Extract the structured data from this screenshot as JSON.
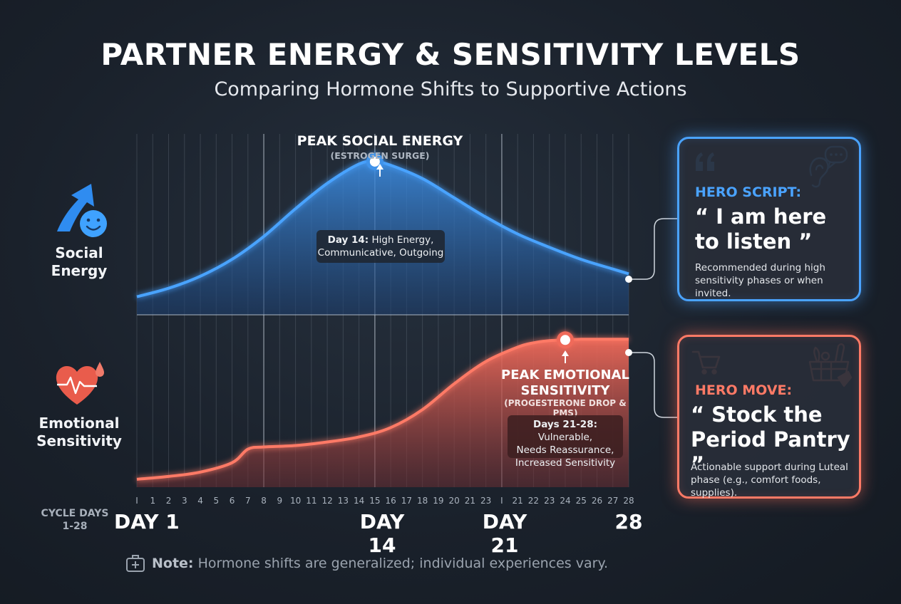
{
  "title": "PARTNER ENERGY & SENSITIVITY LEVELS",
  "subtitle": "Comparing Hormone Shifts to Supportive Actions",
  "colors": {
    "blue": "#3f93ea",
    "red": "#f06a5a"
  },
  "social": {
    "label_line1": "Social",
    "label_line2": "Energy",
    "peak_title": "PEAK SOCIAL ENERGY",
    "peak_sub": "(ESTROGEN SURGE)",
    "callout_bold": "Day 14:",
    "callout_rest": " High Energy,",
    "callout_line2": "Communicative, Outgoing"
  },
  "emotional": {
    "label_line1": "Emotional",
    "label_line2": "Sensitivity",
    "peak_title_line1": "PEAK EMOTIONAL",
    "peak_title_line2": "SENSITIVITY",
    "peak_sub": "(PROGESTERONE DROP & PMS)",
    "callout_bold": "Days 21-28:",
    "callout_rest": " Vulnerable,",
    "callout_line2": "Needs Reassurance,",
    "callout_line3": "Increased Sensitivity"
  },
  "axis": {
    "caption_line1": "CYCLE DAYS",
    "caption_line2": "1-28",
    "day1": "DAY 1",
    "day14": "DAY 14",
    "day21": "DAY 21",
    "day28": "28"
  },
  "cards": {
    "script": {
      "kicker": "HERO SCRIPT:",
      "headline_line1": "“ I am here",
      "headline_line2": "to listen ”",
      "desc_line1": "Recommended during high",
      "desc_line2": "sensitivity phases or when invited."
    },
    "move": {
      "kicker": "HERO MOVE:",
      "headline_line1": "“ Stock the",
      "headline_line2": "Period Pantry ”",
      "desc_line1": "Actionable support during Luteal",
      "desc_line2": "phase (e.g., comfort foods, supplies)."
    }
  },
  "note": {
    "bold": "Note:",
    "text": " Hormone shifts are generalized; individual experiences vary."
  },
  "chart_data": {
    "type": "area",
    "ticks": [
      "I",
      "1",
      "2",
      "3",
      "4",
      "5",
      "6",
      "7",
      "8",
      "9",
      "10",
      "11",
      "12",
      "13",
      "14",
      "15",
      "16",
      "17",
      "18",
      "19",
      "20",
      "21",
      "23",
      "I",
      "21",
      "22",
      "23",
      "24",
      "25",
      "26",
      "27",
      "28"
    ],
    "series": [
      {
        "name": "Social Energy",
        "x": [
          0,
          2,
          4,
          6,
          8,
          10,
          12,
          14,
          15,
          16,
          18,
          20,
          22,
          24,
          26,
          28,
          30,
          31
        ],
        "values": [
          1.5,
          2.2,
          3.2,
          4.6,
          6.5,
          8.8,
          10.9,
          12.5,
          12.7,
          12.4,
          11.3,
          9.7,
          8.1,
          6.7,
          5.6,
          4.6,
          3.8,
          3.4
        ]
      },
      {
        "name": "Emotional Sensitivity",
        "x": [
          0,
          2,
          4,
          6,
          7,
          8,
          10,
          12,
          14,
          16,
          18,
          20,
          22,
          24,
          25,
          26,
          27,
          28,
          29,
          30,
          31
        ],
        "values": [
          1.1,
          1.5,
          2.1,
          3.4,
          5.3,
          5.6,
          5.8,
          6.3,
          7.0,
          8.3,
          10.8,
          14.4,
          17.5,
          19.5,
          20.1,
          20.4,
          20.5,
          20.6,
          20.6,
          20.6,
          20.6
        ]
      }
    ],
    "peaks": [
      {
        "series": "Social Energy",
        "x": 15
      },
      {
        "series": "Emotional Sensitivity",
        "x": 27
      }
    ]
  }
}
